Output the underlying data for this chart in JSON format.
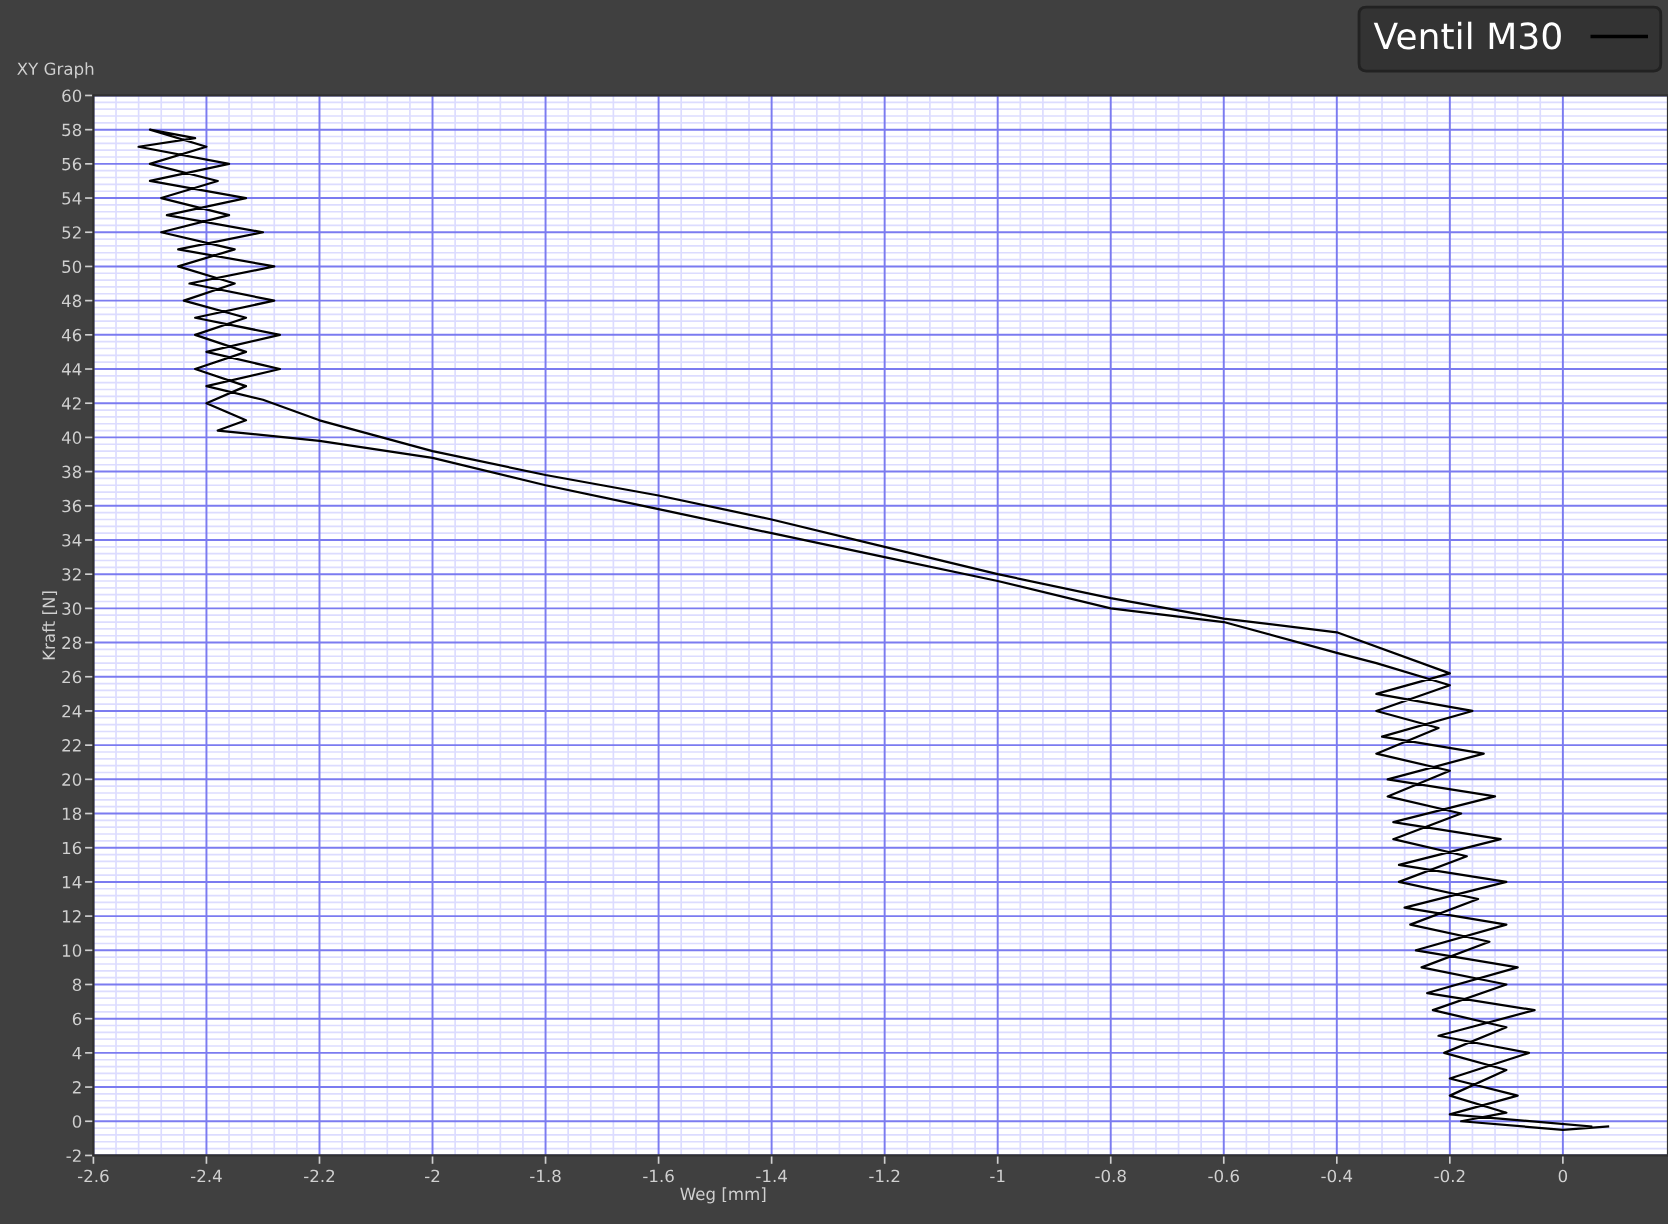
{
  "chart_data": {
    "type": "line",
    "title": "XY Graph",
    "xlabel": "Weg [mm]",
    "ylabel": "Kraft [N]",
    "xlim": [
      -2.6,
      0.186
    ],
    "ylim": [
      -2,
      60
    ],
    "xticks": [
      -2.6,
      -2.4,
      -2.2,
      -2,
      -1.8,
      -1.6,
      -1.4,
      -1.2,
      -1,
      -0.8,
      -0.6,
      -0.4,
      -0.2,
      0
    ],
    "yticks": [
      -2,
      0,
      2,
      4,
      6,
      8,
      10,
      12,
      14,
      16,
      18,
      20,
      22,
      24,
      26,
      28,
      30,
      32,
      34,
      36,
      38,
      40,
      42,
      44,
      46,
      48,
      50,
      52,
      54,
      56,
      58,
      60
    ],
    "grid": true,
    "legend": "top right",
    "marker": "none",
    "line_style": "solid",
    "series": [
      {
        "name": "Ventil M30",
        "color": "#000000",
        "x": [
          0.05,
          -0.2,
          -0.08,
          -0.2,
          -0.06,
          -0.22,
          -0.05,
          -0.24,
          -0.08,
          -0.26,
          -0.1,
          -0.28,
          -0.1,
          -0.29,
          -0.11,
          -0.3,
          -0.12,
          -0.31,
          -0.14,
          -0.32,
          -0.16,
          -0.33,
          -0.2,
          -0.4,
          -0.6,
          -0.8,
          -1.0,
          -1.2,
          -1.4,
          -1.6,
          -1.8,
          -2.0,
          -2.2,
          -2.3,
          -2.4,
          -2.27,
          -2.4,
          -2.27,
          -2.42,
          -2.28,
          -2.43,
          -2.28,
          -2.45,
          -2.3,
          -2.47,
          -2.33,
          -2.5,
          -2.36,
          -2.52,
          -2.42,
          -2.5,
          -2.4,
          -2.5,
          -2.38,
          -2.48,
          -2.36,
          -2.48,
          -2.35,
          -2.45,
          -2.35,
          -2.44,
          -2.33,
          -2.42,
          -2.33,
          -2.42,
          -2.33,
          -2.4,
          -2.33,
          -2.38,
          -2.2,
          -2.0,
          -1.8,
          -1.6,
          -1.4,
          -1.2,
          -1.0,
          -0.8,
          -0.6,
          -0.4,
          -0.33,
          -0.2,
          -0.33,
          -0.22,
          -0.33,
          -0.2,
          -0.31,
          -0.18,
          -0.3,
          -0.17,
          -0.29,
          -0.15,
          -0.27,
          -0.13,
          -0.25,
          -0.1,
          -0.23,
          -0.1,
          -0.21,
          -0.1,
          -0.2,
          -0.1,
          -0.18,
          0.0,
          0.08
        ],
        "values": [
          -0.3,
          0.4,
          1.5,
          2.5,
          4,
          5,
          6.5,
          7.5,
          9,
          10,
          11.5,
          12.5,
          14,
          15,
          16.5,
          17.5,
          19,
          20,
          21.5,
          22.5,
          24,
          25,
          26.2,
          28.6,
          29.4,
          30.6,
          32,
          33.6,
          35.2,
          36.6,
          37.8,
          39.2,
          41,
          42.2,
          43,
          44,
          45,
          46,
          47,
          48,
          49,
          50,
          51,
          52,
          53,
          54,
          55,
          56,
          57,
          57.5,
          58,
          57,
          56,
          55,
          54,
          53,
          52,
          51,
          50,
          49,
          48,
          47,
          46,
          45,
          44,
          43,
          42,
          41,
          40.4,
          39.8,
          38.8,
          37.2,
          35.8,
          34.4,
          33,
          31.6,
          30,
          29.2,
          27.4,
          26.8,
          25.5,
          24,
          23,
          21.5,
          20.5,
          19,
          18,
          16.5,
          15.5,
          14,
          13,
          11.5,
          10.5,
          9,
          8,
          6.5,
          5.5,
          4,
          3,
          1.5,
          0.5,
          0,
          -0.5,
          -0.3
        ]
      }
    ]
  }
}
